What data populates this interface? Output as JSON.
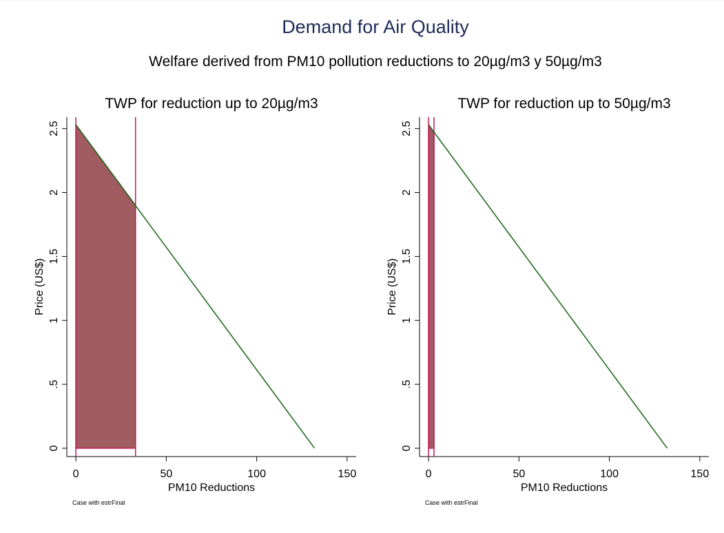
{
  "title": "Demand for Air Quality",
  "subtitle": "Welfare derived from PM10 pollution reductions to 20µg/m3 y 50µg/m3",
  "chart_data": [
    {
      "type": "line",
      "title": "TWP for reduction up to 20µg/m3",
      "x_label": "PM10 Reductions",
      "y_label": "Price (US$)",
      "note": "Case with estrFinal",
      "x": [
        0,
        132
      ],
      "values": [
        2.53,
        0
      ],
      "color": "#1f6b1f",
      "shade": {
        "x": [
          0,
          33
        ],
        "values": [
          2.53,
          1.9
        ],
        "color": "#a05c60",
        "edge_color": "#c2185b"
      },
      "xlim": [
        -5,
        155
      ],
      "ylim": [
        -0.065,
        2.59
      ],
      "xticks": [
        0,
        50,
        100,
        150
      ],
      "yticks": [
        0,
        {
          "value": 0.5,
          "label": ".5"
        },
        1,
        1.5,
        2,
        2.5
      ]
    },
    {
      "type": "line",
      "title": "TWP for reduction up to 50µg/m3",
      "x_label": "PM10 Reductions",
      "y_label": "Price (US$)",
      "note": "Case with estrFinal",
      "x": [
        0,
        132
      ],
      "values": [
        2.53,
        0
      ],
      "color": "#1f6b1f",
      "shade": {
        "x": [
          0,
          3
        ],
        "values": [
          2.53,
          2.47
        ],
        "color": "#a05c60",
        "edge_color": "#c2185b"
      },
      "xlim": [
        -5,
        155
      ],
      "ylim": [
        -0.065,
        2.59
      ],
      "xticks": [
        0,
        50,
        100,
        150
      ],
      "yticks": [
        0,
        {
          "value": 0.5,
          "label": ".5"
        },
        1,
        1.5,
        2,
        2.5
      ]
    }
  ]
}
